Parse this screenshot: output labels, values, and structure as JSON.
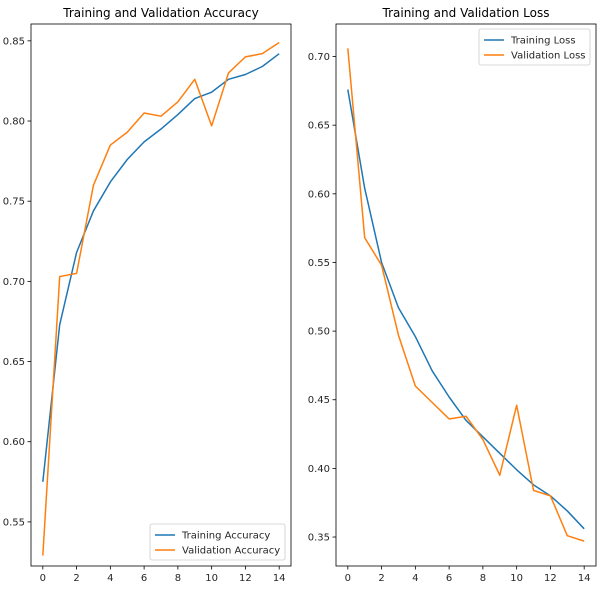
{
  "chart_data": [
    {
      "type": "line",
      "title": "Training and Validation Accuracy",
      "xlabel": "",
      "ylabel": "",
      "xlim": [
        -0.7,
        14.7
      ],
      "ylim": [
        0.5225,
        0.8605
      ],
      "xticks": [
        0,
        2,
        4,
        6,
        8,
        10,
        12,
        14
      ],
      "xtick_labels": [
        "0",
        "2",
        "4",
        "6",
        "8",
        "10",
        "12",
        "14"
      ],
      "yticks": [
        0.55,
        0.6,
        0.65,
        0.7,
        0.75,
        0.8,
        0.85
      ],
      "ytick_labels": [
        "0.55",
        "0.60",
        "0.65",
        "0.70",
        "0.75",
        "0.80",
        "0.85"
      ],
      "grid": false,
      "legend_position": "lower-right",
      "x": [
        0,
        1,
        2,
        3,
        4,
        5,
        6,
        7,
        8,
        9,
        10,
        11,
        12,
        13,
        14
      ],
      "series": [
        {
          "name": "Training Accuracy",
          "color": "#1f77b4",
          "values": [
            0.575,
            0.673,
            0.718,
            0.744,
            0.762,
            0.776,
            0.787,
            0.795,
            0.804,
            0.814,
            0.818,
            0.826,
            0.829,
            0.834,
            0.842
          ]
        },
        {
          "name": "Validation Accuracy",
          "color": "#ff7f0e",
          "values": [
            0.529,
            0.703,
            0.705,
            0.76,
            0.785,
            0.793,
            0.805,
            0.803,
            0.812,
            0.826,
            0.797,
            0.83,
            0.84,
            0.842,
            0.849
          ]
        }
      ]
    },
    {
      "type": "line",
      "title": "Training and Validation Loss",
      "xlabel": "",
      "ylabel": "",
      "xlim": [
        -0.7,
        14.7
      ],
      "ylim": [
        0.3289,
        0.7237
      ],
      "xticks": [
        0,
        2,
        4,
        6,
        8,
        10,
        12,
        14
      ],
      "xtick_labels": [
        "0",
        "2",
        "4",
        "6",
        "8",
        "10",
        "12",
        "14"
      ],
      "yticks": [
        0.35,
        0.4,
        0.45,
        0.5,
        0.55,
        0.6,
        0.65,
        0.7
      ],
      "ytick_labels": [
        "0.35",
        "0.40",
        "0.45",
        "0.50",
        "0.55",
        "0.60",
        "0.65",
        "0.70"
      ],
      "grid": false,
      "legend_position": "upper-right",
      "x": [
        0,
        1,
        2,
        3,
        4,
        5,
        6,
        7,
        8,
        9,
        10,
        11,
        12,
        13,
        14
      ],
      "series": [
        {
          "name": "Training Loss",
          "color": "#1f77b4",
          "values": [
            0.676,
            0.604,
            0.55,
            0.517,
            0.496,
            0.471,
            0.452,
            0.435,
            0.423,
            0.411,
            0.399,
            0.388,
            0.38,
            0.369,
            0.356
          ]
        },
        {
          "name": "Validation Loss",
          "color": "#ff7f0e",
          "values": [
            0.706,
            0.568,
            0.548,
            0.497,
            0.46,
            0.448,
            0.436,
            0.438,
            0.421,
            0.395,
            0.446,
            0.384,
            0.38,
            0.351,
            0.347
          ]
        }
      ]
    }
  ]
}
